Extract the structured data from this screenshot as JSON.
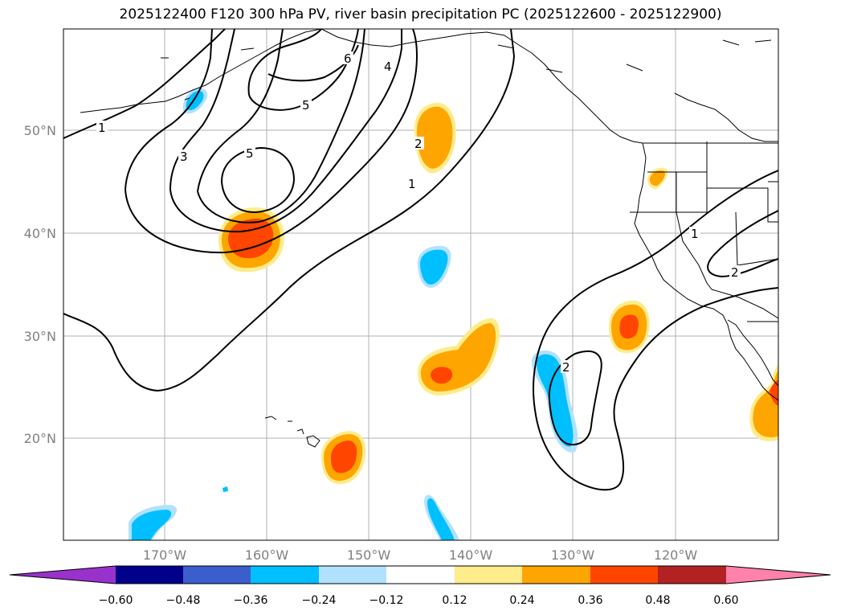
{
  "title": "2025122400 F120 300 hPa PV, river basin precipitation PC (2025122600 - 2025122900)",
  "map": {
    "lat_labels": [
      "50°N",
      "40°N",
      "30°N",
      "20°N"
    ],
    "lon_labels": [
      "170°W",
      "160°W",
      "150°W",
      "140°W",
      "130°W",
      "120°W"
    ],
    "contour_labels": [
      "1",
      "3",
      "5",
      "5",
      "6",
      "4",
      "2",
      "1",
      "2",
      "1",
      "2"
    ]
  },
  "colorbar": {
    "ticks": [
      "−0.60",
      "−0.48",
      "−0.36",
      "−0.24",
      "−0.12",
      "0.12",
      "0.24",
      "0.36",
      "0.48",
      "0.60"
    ],
    "colors": [
      "#9932cc",
      "#00008b",
      "#3a5fcd",
      "#00bfff",
      "#b0e2ff",
      "#ffffff",
      "#ffec8b",
      "#ffa500",
      "#ff4500",
      "#b22222",
      "#ff82ab"
    ]
  }
}
